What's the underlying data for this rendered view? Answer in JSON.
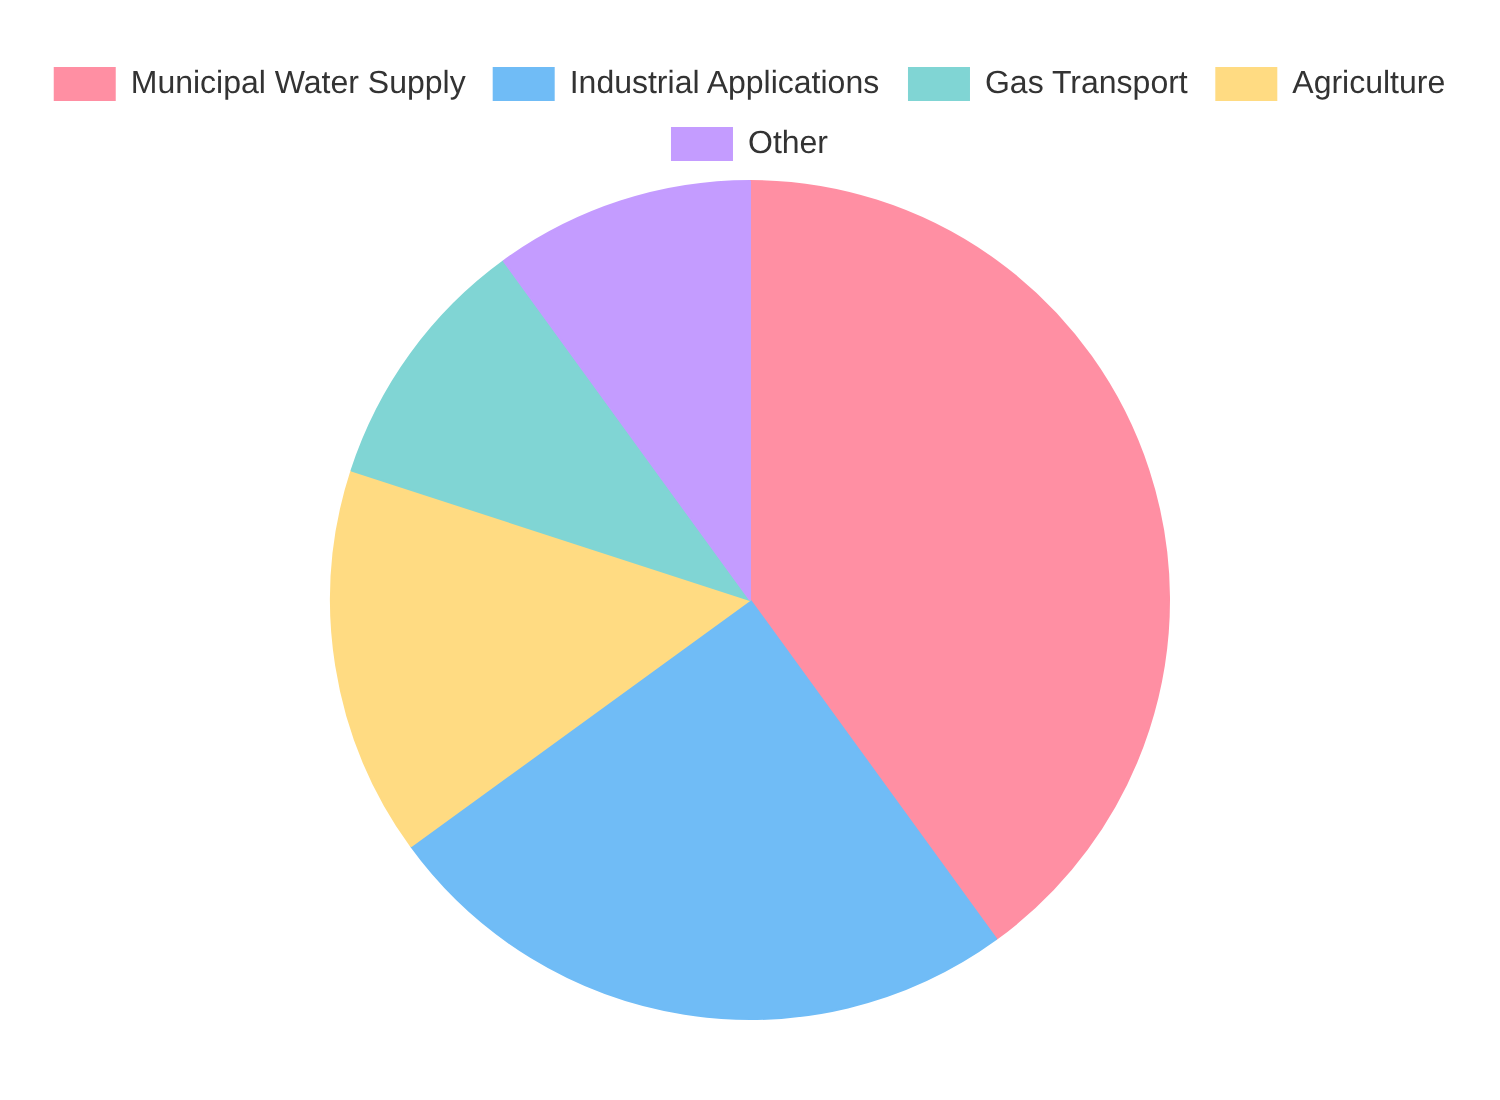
{
  "chart_data": {
    "type": "pie",
    "categories": [
      "Municipal Water Supply",
      "Industrial Applications",
      "Agriculture",
      "Gas Transport",
      "Other"
    ],
    "values": [
      40,
      25,
      15,
      10,
      10
    ],
    "colors": [
      "#ff8fa3",
      "#70bcf6",
      "#ffdb82",
      "#80d5d4",
      "#c49cff"
    ],
    "legend": "top"
  }
}
